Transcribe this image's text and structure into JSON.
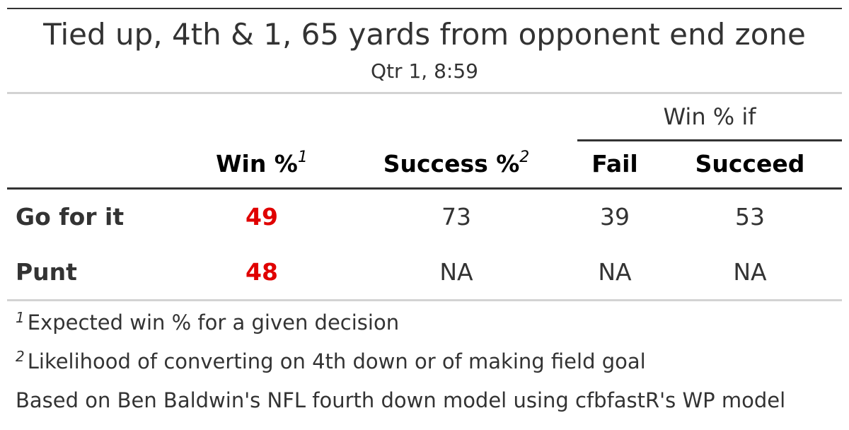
{
  "title": "Tied up, 4th & 1, 65 yards from opponent end zone",
  "subtitle": "Qtr 1, 8:59",
  "spanner_label": "Win % if",
  "columns": {
    "win": {
      "label": "Win %",
      "footnote_mark": "1"
    },
    "success": {
      "label": "Success %",
      "footnote_mark": "2"
    },
    "fail": {
      "label": "Fail"
    },
    "succeed": {
      "label": "Succeed"
    }
  },
  "rows": [
    {
      "label": "Go for it",
      "win": "49",
      "success": "73",
      "fail": "39",
      "succeed": "53"
    },
    {
      "label": "Punt",
      "win": "48",
      "success": "NA",
      "fail": "NA",
      "succeed": "NA"
    }
  ],
  "colors": {
    "highlight": "#e00000",
    "text": "#333333",
    "rule_dark": "#333333",
    "rule_light": "#d3d3d3"
  },
  "footnotes": [
    {
      "mark": "1",
      "text": "Expected win % for a given decision"
    },
    {
      "mark": "2",
      "text": "Likelihood of converting on 4th down or of making field goal"
    }
  ],
  "source_note": "Based on Ben Baldwin's NFL fourth down model using cfbfastR's WP model"
}
